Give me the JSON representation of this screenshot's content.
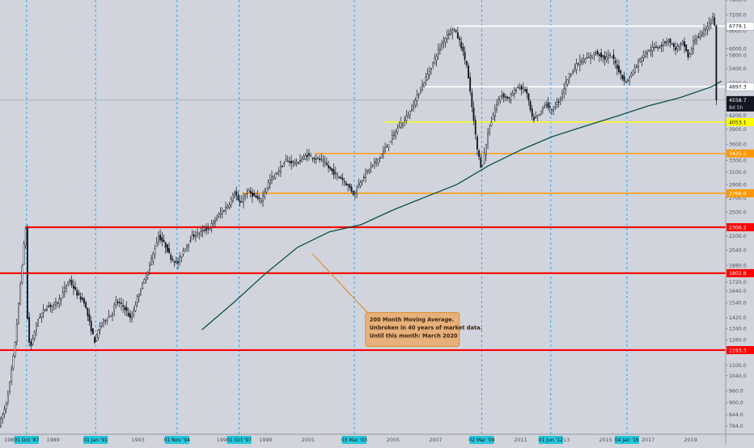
{
  "chart_data": {
    "type": "candlestick",
    "title": "",
    "xlabel": "",
    "ylabel": "",
    "log_scale": true,
    "grid": false,
    "ylim": [
      760,
      7800
    ],
    "xlim": [
      1986.5,
      2020.65
    ],
    "colors": {
      "background": "#d1d4dc",
      "candle": "#131722",
      "red": "#ff0000",
      "orange": "#ff9800",
      "yellow": "#ffff00",
      "white": "#ffffff",
      "ma": "#0b4f47",
      "event_line": "#00aaff",
      "event_label_bg": "#26c6da",
      "callout_bg": "#e8b07a",
      "callout_border": "#d99036",
      "current_price_bg": "#131722"
    },
    "y_ticks": [
      7800.0,
      7200.0,
      6600.0,
      6000.0,
      5800.0,
      5400.0,
      5000.0,
      4600.0,
      4200.0,
      3900.0,
      3600.0,
      3300.0,
      3100.0,
      2900.0,
      2700.0,
      2500.0,
      2300.0,
      2200.0,
      2040.0,
      1880.0,
      1720.0,
      1640.0,
      1540.0,
      1420.0,
      1340.0,
      1260.0,
      1180.0,
      1100.0,
      1040.0,
      960.0,
      900.0,
      844.0,
      794.0
    ],
    "x_ticks": [
      {
        "label": "1987",
        "x": 1987.0
      },
      {
        "label": "1989",
        "x": 1989.0
      },
      {
        "label": "1993",
        "x": 1993.0
      },
      {
        "label": "1997",
        "x": 1997.0
      },
      {
        "label": "1999",
        "x": 1999.0
      },
      {
        "label": "2001",
        "x": 2001.0
      },
      {
        "label": "2005",
        "x": 2005.0
      },
      {
        "label": "2007",
        "x": 2007.0
      },
      {
        "label": "2011",
        "x": 2011.0
      },
      {
        "label": "2013",
        "x": 2013.0
      },
      {
        "label": "2015",
        "x": 2015.0
      },
      {
        "label": "2017",
        "x": 2017.0
      },
      {
        "label": "2019",
        "x": 2019.0
      }
    ],
    "events": [
      {
        "label": "01 Oct '87",
        "x": 1987.75
      },
      {
        "label": "01 Jan '91",
        "x": 1991.0
      },
      {
        "label": "01 Nov '94",
        "x": 1994.83
      },
      {
        "label": "01 Oct '97",
        "x": 1997.75
      },
      {
        "label": "03 Mar '03",
        "x": 2003.17
      },
      {
        "label": "02 Mar '09",
        "x": 2009.17
      },
      {
        "label": "01 Jun '12",
        "x": 2012.42
      },
      {
        "label": "04 Jan '16",
        "x": 2016.0
      }
    ],
    "horizontal_levels": [
      {
        "value": 6779.1,
        "label": "6779.1",
        "color": "white",
        "x_start": 2007.9
      },
      {
        "value": 4897.3,
        "label": "4897.3",
        "color": "white",
        "x_start": 2006.5
      },
      {
        "value": 4053.1,
        "label": "4053.1",
        "color": "yellow",
        "x_start": 2004.6
      },
      {
        "value": 3425.2,
        "label": "3425.2",
        "color": "orange",
        "x_start": 2001.3
      },
      {
        "value": 2766.9,
        "label": "2766.9",
        "color": "orange",
        "x_start": 1997.9
      },
      {
        "value": 2306.2,
        "label": "2306.2",
        "color": "red",
        "x_start": 1987.7
      },
      {
        "value": 1802.8,
        "label": "1802.8",
        "color": "red",
        "x_start": 1986.5
      },
      {
        "value": 1193.3,
        "label": "1193.3",
        "color": "red",
        "x_start": 1986.5
      }
    ],
    "current_price": {
      "value": 4558.7,
      "label": "4558.7",
      "extra_label": "8d 5h"
    },
    "price_path": [
      [
        1986.5,
        800
      ],
      [
        1986.8,
        880
      ],
      [
        1987.0,
        1000
      ],
      [
        1987.2,
        1180
      ],
      [
        1987.35,
        1400
      ],
      [
        1987.5,
        1700
      ],
      [
        1987.65,
        2050
      ],
      [
        1987.75,
        2300
      ],
      [
        1987.8,
        1500
      ],
      [
        1987.9,
        1250
      ],
      [
        1988.0,
        1220
      ],
      [
        1988.3,
        1400
      ],
      [
        1988.7,
        1500
      ],
      [
        1989.0,
        1520
      ],
      [
        1989.3,
        1550
      ],
      [
        1989.8,
        1740
      ],
      [
        1990.2,
        1600
      ],
      [
        1990.5,
        1550
      ],
      [
        1990.8,
        1350
      ],
      [
        1991.0,
        1250
      ],
      [
        1991.3,
        1380
      ],
      [
        1991.8,
        1450
      ],
      [
        1992.0,
        1550
      ],
      [
        1992.4,
        1500
      ],
      [
        1992.7,
        1400
      ],
      [
        1993.0,
        1580
      ],
      [
        1993.5,
        1820
      ],
      [
        1994.0,
        2200
      ],
      [
        1994.3,
        2100
      ],
      [
        1994.6,
        1950
      ],
      [
        1994.9,
        1900
      ],
      [
        1995.2,
        2050
      ],
      [
        1995.6,
        2200
      ],
      [
        1996.0,
        2250
      ],
      [
        1996.4,
        2300
      ],
      [
        1996.8,
        2450
      ],
      [
        1997.3,
        2600
      ],
      [
        1997.6,
        2800
      ],
      [
        1997.8,
        2600
      ],
      [
        1998.2,
        2800
      ],
      [
        1998.8,
        2650
      ],
      [
        1999.2,
        2950
      ],
      [
        1999.6,
        3100
      ],
      [
        2000.0,
        3300
      ],
      [
        2000.5,
        3250
      ],
      [
        2001.0,
        3400
      ],
      [
        2001.3,
        3350
      ],
      [
        2001.7,
        3300
      ],
      [
        2002.2,
        3100
      ],
      [
        2002.6,
        3000
      ],
      [
        2003.0,
        2850
      ],
      [
        2003.2,
        2750
      ],
      [
        2003.5,
        2950
      ],
      [
        2003.9,
        3150
      ],
      [
        2004.4,
        3350
      ],
      [
        2004.8,
        3600
      ],
      [
        2005.3,
        3950
      ],
      [
        2005.8,
        4250
      ],
      [
        2006.3,
        4800
      ],
      [
        2006.8,
        5400
      ],
      [
        2007.2,
        6000
      ],
      [
        2007.6,
        6500
      ],
      [
        2007.9,
        6700
      ],
      [
        2008.2,
        6200
      ],
      [
        2008.5,
        5500
      ],
      [
        2008.8,
        4200
      ],
      [
        2009.0,
        3500
      ],
      [
        2009.2,
        3150
      ],
      [
        2009.5,
        3800
      ],
      [
        2009.8,
        4300
      ],
      [
        2010.1,
        4700
      ],
      [
        2010.5,
        4600
      ],
      [
        2010.9,
        4900
      ],
      [
        2011.3,
        4800
      ],
      [
        2011.6,
        4100
      ],
      [
        2011.9,
        4200
      ],
      [
        2012.2,
        4500
      ],
      [
        2012.5,
        4300
      ],
      [
        2012.9,
        4600
      ],
      [
        2013.3,
        5200
      ],
      [
        2013.8,
        5600
      ],
      [
        2014.2,
        5700
      ],
      [
        2014.6,
        5900
      ],
      [
        2015.0,
        5700
      ],
      [
        2015.3,
        5800
      ],
      [
        2015.7,
        5300
      ],
      [
        2016.0,
        5000
      ],
      [
        2016.4,
        5400
      ],
      [
        2016.8,
        5800
      ],
      [
        2017.2,
        6000
      ],
      [
        2017.6,
        6100
      ],
      [
        2018.0,
        6300
      ],
      [
        2018.3,
        6000
      ],
      [
        2018.7,
        6200
      ],
      [
        2018.95,
        5700
      ],
      [
        2019.2,
        6300
      ],
      [
        2019.6,
        6500
      ],
      [
        2019.9,
        6900
      ],
      [
        2020.1,
        7100
      ],
      [
        2020.2,
        6700
      ],
      [
        2020.25,
        4558.7
      ]
    ],
    "moving_average": {
      "period_label": "200 Month Moving Average",
      "points": [
        [
          1996.0,
          1330
        ],
        [
          1997.5,
          1540
        ],
        [
          1999.0,
          1800
        ],
        [
          2000.5,
          2070
        ],
        [
          2002.0,
          2250
        ],
        [
          2003.5,
          2340
        ],
        [
          2005.0,
          2530
        ],
        [
          2006.5,
          2710
        ],
        [
          2008.0,
          2900
        ],
        [
          2009.5,
          3210
        ],
        [
          2011.0,
          3490
        ],
        [
          2012.5,
          3750
        ],
        [
          2014.0,
          3960
        ],
        [
          2015.5,
          4180
        ],
        [
          2017.0,
          4420
        ],
        [
          2018.5,
          4620
        ],
        [
          2020.0,
          4900
        ],
        [
          2020.45,
          5050
        ]
      ]
    },
    "annotations": [
      {
        "lines": [
          "200 Month Moving Average.",
          "Unbroken in 40 years of market data.",
          "Until this month: March 2020"
        ],
        "x": 2003.7,
        "y": 1460,
        "arrow_to": [
          2001.2,
          2000
        ]
      }
    ]
  }
}
